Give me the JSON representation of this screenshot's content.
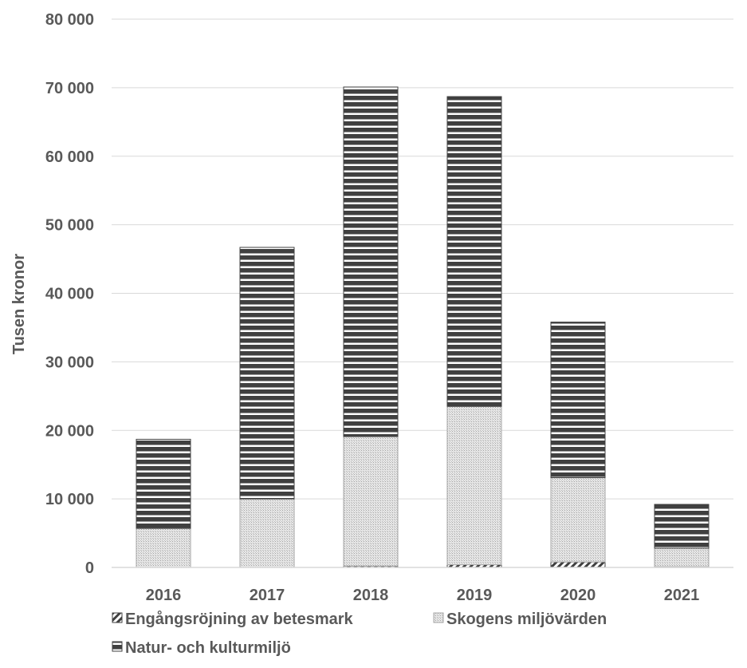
{
  "chart_data": {
    "type": "bar",
    "stacked": true,
    "title": "",
    "xlabel": "",
    "ylabel": "Tusen kronor",
    "categories": [
      "2016",
      "2017",
      "2018",
      "2019",
      "2020",
      "2021"
    ],
    "ylim": [
      0,
      80000
    ],
    "yticks": [
      0,
      10000,
      20000,
      30000,
      40000,
      50000,
      60000,
      70000,
      80000
    ],
    "ytick_labels": [
      "0",
      "10 000",
      "20 000",
      "30 000",
      "40 000",
      "50 000",
      "60 000",
      "70 000",
      "80 000"
    ],
    "grid": "horizontal",
    "legend_position": "bottom",
    "series": [
      {
        "name": "Engångsröjning av betesmark",
        "pattern": "diagonal-hatch",
        "color": "#404040",
        "values": [
          0,
          0,
          200,
          400,
          800,
          100
        ]
      },
      {
        "name": "Skogens miljövärden",
        "pattern": "dotted-light",
        "color": "#bfbfbf",
        "values": [
          5700,
          10000,
          18900,
          23100,
          12300,
          2700
        ]
      },
      {
        "name": "Natur- och kulturmiljö",
        "pattern": "horizontal-stripes",
        "color": "#404040",
        "values": [
          13000,
          36700,
          51000,
          45200,
          22700,
          6400
        ]
      }
    ]
  }
}
